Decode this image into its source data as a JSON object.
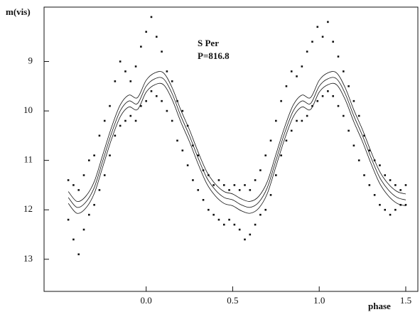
{
  "chart_data": {
    "type": "scatter",
    "y_label": "m(vis)",
    "x_label": "phase",
    "annotations": [
      "S Per",
      "P=816.8"
    ],
    "xlim": [
      -0.59,
      1.57
    ],
    "ylim": [
      7.9,
      13.65
    ],
    "y_inverted": true,
    "xticks": [
      {
        "value": 0,
        "label": "0.0"
      },
      0.5,
      {
        "value": 1,
        "label": "1.0"
      },
      1.5
    ],
    "yticks": [
      9,
      10,
      11,
      12,
      13
    ],
    "color": "#111111",
    "x": [
      -0.45,
      -0.45,
      -0.42,
      -0.42,
      -0.39,
      -0.39,
      -0.36,
      -0.36,
      -0.33,
      -0.33,
      -0.3,
      -0.3,
      -0.27,
      -0.27,
      -0.24,
      -0.24,
      -0.21,
      -0.21,
      -0.18,
      -0.18,
      -0.15,
      -0.15,
      -0.12,
      -0.12,
      -0.09,
      -0.09,
      -0.06,
      -0.06,
      -0.03,
      -0.03,
      0,
      0,
      0.03,
      0.03,
      0.06,
      0.06,
      0.09,
      0.09,
      0.12,
      0.12,
      0.15,
      0.15,
      0.18,
      0.18,
      0.21,
      0.21,
      0.24,
      0.24,
      0.27,
      0.27,
      0.3,
      0.3,
      0.33,
      0.33,
      0.36,
      0.36,
      0.39,
      0.39,
      0.42,
      0.42,
      0.45,
      0.45,
      0.48,
      0.48,
      0.51,
      0.51,
      0.54,
      0.54,
      0.57,
      0.57,
      0.6,
      0.6,
      0.63,
      0.63,
      0.66,
      0.66,
      0.69,
      0.69,
      0.72,
      0.72,
      0.75,
      0.75,
      0.78,
      0.78,
      0.81,
      0.81,
      0.84,
      0.84,
      0.87,
      0.87,
      0.9,
      0.9,
      0.93,
      0.93,
      0.96,
      0.96,
      0.99,
      0.99,
      1.02,
      1.02,
      1.05,
      1.05,
      1.08,
      1.08,
      1.11,
      1.11,
      1.14,
      1.14,
      1.17,
      1.17,
      1.2,
      1.2,
      1.23,
      1.23,
      1.26,
      1.26,
      1.29,
      1.29,
      1.32,
      1.32,
      1.35,
      1.35,
      1.38,
      1.38,
      1.41,
      1.41,
      1.44,
      1.44,
      1.47,
      1.47,
      1.5,
      1.5
    ],
    "values": [
      12.2,
      11.4,
      12.6,
      11.5,
      12.9,
      11.6,
      12.4,
      11.3,
      12.1,
      11.0,
      11.9,
      10.9,
      11.6,
      10.5,
      11.3,
      10.2,
      10.9,
      9.9,
      10.5,
      9.4,
      10.3,
      9.0,
      10.2,
      9.2,
      10.1,
      9.4,
      10.2,
      9.1,
      9.9,
      8.7,
      9.8,
      8.4,
      9.6,
      8.1,
      9.7,
      8.5,
      9.8,
      8.8,
      10.0,
      9.2,
      10.2,
      9.4,
      10.6,
      9.8,
      10.8,
      10.0,
      11.1,
      10.3,
      11.4,
      10.7,
      11.6,
      10.9,
      11.8,
      11.2,
      12.0,
      11.3,
      12.1,
      11.5,
      12.2,
      11.4,
      12.3,
      11.5,
      12.2,
      11.6,
      12.3,
      11.5,
      12.4,
      11.6,
      12.6,
      11.5,
      12.5,
      11.6,
      12.3,
      11.4,
      12.1,
      11.2,
      12.0,
      10.9,
      11.7,
      10.6,
      11.3,
      10.2,
      10.9,
      9.8,
      10.6,
      9.5,
      10.4,
      9.2,
      10.2,
      9.3,
      10.2,
      9.1,
      10.1,
      8.8,
      9.9,
      8.6,
      9.8,
      8.3,
      9.7,
      8.5,
      9.6,
      8.2,
      9.7,
      8.6,
      9.9,
      8.9,
      10.1,
      9.2,
      10.4,
      9.5,
      10.7,
      9.8,
      11.0,
      10.1,
      11.3,
      10.5,
      11.5,
      10.8,
      11.7,
      11.0,
      11.9,
      11.1,
      12.0,
      11.3,
      12.1,
      11.4,
      12.0,
      11.5,
      11.9,
      11.6,
      11.9,
      11.5
    ],
    "curve_x": [
      -0.45,
      -0.4,
      -0.35,
      -0.3,
      -0.25,
      -0.2,
      -0.15,
      -0.1,
      -0.05,
      0,
      0.05,
      0.1,
      0.15,
      0.2,
      0.25,
      0.3,
      0.35,
      0.4,
      0.45,
      0.5,
      0.55,
      0.6,
      0.65,
      0.7,
      0.75,
      0.8,
      0.85,
      0.9,
      0.95,
      1,
      1.05,
      1.1,
      1.15,
      1.2,
      1.25,
      1.3,
      1.35,
      1.4,
      1.45,
      1.5
    ],
    "curves": [
      {
        "color": "#111111",
        "values": [
          11.63,
          11.83,
          11.73,
          11.43,
          10.88,
          10.33,
          9.88,
          9.68,
          9.73,
          9.38,
          9.23,
          9.23,
          9.53,
          9.98,
          10.38,
          10.83,
          11.23,
          11.48,
          11.63,
          11.68,
          11.78,
          11.83,
          11.73,
          11.43,
          10.88,
          10.33,
          9.88,
          9.68,
          9.73,
          9.38,
          9.23,
          9.23,
          9.53,
          9.98,
          10.38,
          10.83,
          11.23,
          11.48,
          11.63,
          11.68
        ]
      },
      {
        "color": "#111111",
        "values": [
          11.75,
          11.95,
          11.85,
          11.55,
          11.0,
          10.45,
          10.0,
          9.8,
          9.85,
          9.5,
          9.35,
          9.35,
          9.65,
          10.1,
          10.5,
          10.95,
          11.35,
          11.6,
          11.75,
          11.8,
          11.9,
          11.95,
          11.85,
          11.55,
          11.0,
          10.45,
          10.0,
          9.8,
          9.85,
          9.5,
          9.35,
          9.35,
          9.65,
          10.1,
          10.5,
          10.95,
          11.35,
          11.6,
          11.75,
          11.8
        ]
      },
      {
        "color": "#111111",
        "values": [
          11.87,
          12.07,
          11.97,
          11.67,
          11.12,
          10.57,
          10.12,
          9.92,
          9.97,
          9.62,
          9.47,
          9.47,
          9.77,
          10.22,
          10.62,
          11.07,
          11.47,
          11.72,
          11.87,
          11.92,
          12.02,
          12.07,
          11.97,
          11.67,
          11.12,
          10.57,
          10.12,
          9.92,
          9.97,
          9.62,
          9.47,
          9.47,
          9.77,
          10.22,
          10.62,
          11.07,
          11.47,
          11.72,
          11.87,
          11.92
        ]
      }
    ]
  }
}
